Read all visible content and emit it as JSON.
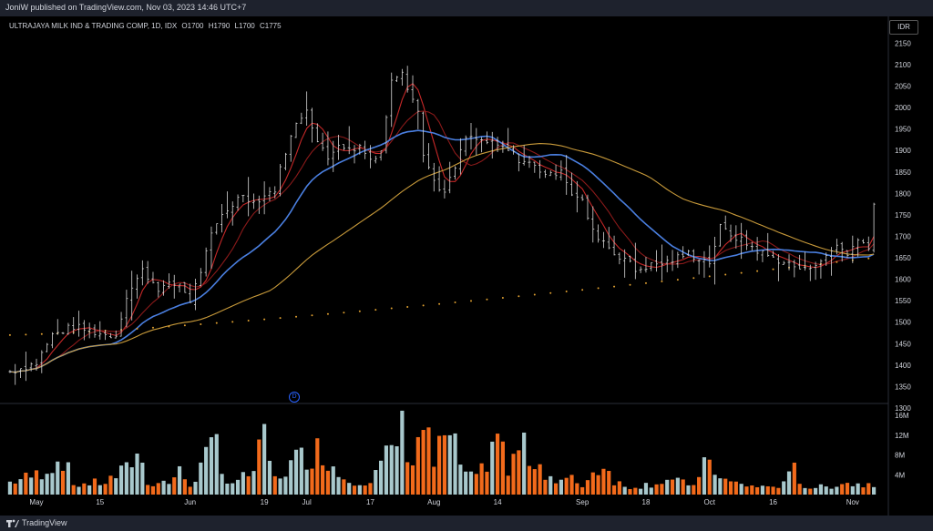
{
  "header": {
    "publish_text": "JoniW published on TradingView.com, Nov 03, 2023 14:46 UTC+7"
  },
  "footer": {
    "brand": "TradingView"
  },
  "chart_data": {
    "type": "candlestick",
    "symbol_line": "ULTRAJAYA MILK IND & TRADING COMP, 1D, IDX",
    "ohlc": {
      "O_label": "O",
      "O": "1700",
      "H_label": "H",
      "H": "1790",
      "L_label": "L",
      "L": "1700",
      "C_label": "C",
      "C": "1775"
    },
    "currency": "IDR",
    "dividend_marker": "D",
    "price_axis": {
      "ticks": [
        1300,
        1350,
        1400,
        1450,
        1500,
        1550,
        1600,
        1650,
        1700,
        1750,
        1800,
        1850,
        1900,
        1950,
        2000,
        2050,
        2100,
        2150
      ],
      "range": [
        1300,
        2170
      ]
    },
    "volume_axis": {
      "ticks": [
        "16M",
        "12M",
        "8M",
        "4M"
      ],
      "values": [
        16,
        12,
        8,
        4
      ],
      "range": [
        0,
        17.5
      ],
      "unit": "M"
    },
    "x_axis": {
      "labels": [
        "May",
        "15",
        "Jun",
        "19",
        "Jul",
        "17",
        "Aug",
        "14",
        "Sep",
        "18",
        "Oct",
        "16",
        "Nov"
      ],
      "label_bar_index": [
        5,
        17,
        34,
        48,
        56,
        68,
        80,
        92,
        108,
        120,
        132,
        144,
        159
      ],
      "bar_count": 164
    },
    "price_keyframes": [
      [
        0,
        1385
      ],
      [
        5,
        1405
      ],
      [
        8,
        1470
      ],
      [
        12,
        1490
      ],
      [
        18,
        1470
      ],
      [
        20,
        1470
      ],
      [
        22,
        1560
      ],
      [
        25,
        1620
      ],
      [
        28,
        1580
      ],
      [
        32,
        1590
      ],
      [
        34,
        1550
      ],
      [
        36,
        1620
      ],
      [
        38,
        1700
      ],
      [
        40,
        1750
      ],
      [
        44,
        1800
      ],
      [
        46,
        1780
      ],
      [
        50,
        1810
      ],
      [
        52,
        1900
      ],
      [
        54,
        1960
      ],
      [
        56,
        2000
      ],
      [
        58,
        1920
      ],
      [
        60,
        1880
      ],
      [
        62,
        1920
      ],
      [
        64,
        1900
      ],
      [
        66,
        1910
      ],
      [
        68,
        1880
      ],
      [
        70,
        1900
      ],
      [
        72,
        2060
      ],
      [
        74,
        2090
      ],
      [
        75,
        2050
      ],
      [
        77,
        2000
      ],
      [
        78,
        1890
      ],
      [
        80,
        1830
      ],
      [
        82,
        1800
      ],
      [
        84,
        1860
      ],
      [
        86,
        1930
      ],
      [
        90,
        1920
      ],
      [
        94,
        1900
      ],
      [
        96,
        1880
      ],
      [
        98,
        1870
      ],
      [
        102,
        1840
      ],
      [
        104,
        1860
      ],
      [
        106,
        1800
      ],
      [
        108,
        1780
      ],
      [
        110,
        1710
      ],
      [
        112,
        1690
      ],
      [
        114,
        1660
      ],
      [
        116,
        1650
      ],
      [
        118,
        1620
      ],
      [
        120,
        1630
      ],
      [
        124,
        1640
      ],
      [
        128,
        1660
      ],
      [
        132,
        1640
      ],
      [
        134,
        1720
      ],
      [
        138,
        1690
      ],
      [
        142,
        1660
      ],
      [
        146,
        1640
      ],
      [
        148,
        1630
      ],
      [
        150,
        1620
      ],
      [
        152,
        1640
      ],
      [
        154,
        1650
      ],
      [
        156,
        1680
      ],
      [
        158,
        1660
      ],
      [
        160,
        1690
      ],
      [
        162,
        1680
      ],
      [
        163,
        1775
      ]
    ],
    "volume_keyframes": [
      [
        0,
        2.5
      ],
      [
        5,
        4
      ],
      [
        8,
        6
      ],
      [
        10,
        7.5
      ],
      [
        12,
        2
      ],
      [
        18,
        2.5
      ],
      [
        22,
        5
      ],
      [
        24,
        9
      ],
      [
        26,
        2.5
      ],
      [
        30,
        2.5
      ],
      [
        32,
        4.5
      ],
      [
        34,
        2
      ],
      [
        37,
        7
      ],
      [
        39,
        11
      ],
      [
        41,
        2.5
      ],
      [
        43,
        2.5
      ],
      [
        46,
        5
      ],
      [
        48,
        11
      ],
      [
        50,
        3
      ],
      [
        54,
        7
      ],
      [
        56,
        8
      ],
      [
        58,
        9
      ],
      [
        60,
        7.5
      ],
      [
        62,
        4
      ],
      [
        65,
        3
      ],
      [
        68,
        2.5
      ],
      [
        72,
        9
      ],
      [
        74,
        13
      ],
      [
        76,
        7
      ],
      [
        78,
        14.5
      ],
      [
        80,
        6
      ],
      [
        82,
        12
      ],
      [
        84,
        9
      ],
      [
        86,
        4
      ],
      [
        88,
        3
      ],
      [
        90,
        7
      ],
      [
        92,
        13.5
      ],
      [
        94,
        4
      ],
      [
        96,
        10
      ],
      [
        100,
        6
      ],
      [
        103,
        2.5
      ],
      [
        106,
        3
      ],
      [
        108,
        2
      ],
      [
        112,
        6.5
      ],
      [
        114,
        3
      ],
      [
        116,
        1.5
      ],
      [
        120,
        2
      ],
      [
        124,
        3
      ],
      [
        128,
        2
      ],
      [
        130,
        3
      ],
      [
        132,
        8
      ],
      [
        134,
        3
      ],
      [
        138,
        2
      ],
      [
        142,
        1.5
      ],
      [
        146,
        2
      ],
      [
        148,
        5
      ],
      [
        150,
        1.5
      ],
      [
        154,
        1.5
      ],
      [
        157,
        2.5
      ],
      [
        160,
        2
      ],
      [
        163,
        2.5
      ]
    ],
    "moving_averages": [
      {
        "periods": 5,
        "color": "#c62828"
      },
      {
        "periods": 10,
        "color": "#8b1a1a"
      },
      {
        "periods": 20,
        "color": "#4a7fe0"
      },
      {
        "periods": 50,
        "color": "#c89a3a"
      },
      {
        "periods": 200,
        "color": "#e0a030",
        "style": "dotted"
      }
    ],
    "colors": {
      "candle": "#d8d8d8",
      "volume_up": "#a8c8cc",
      "volume_down": "#f26a1b",
      "grid": "#2a2e39",
      "axis_text": "#d1d4dc"
    }
  }
}
